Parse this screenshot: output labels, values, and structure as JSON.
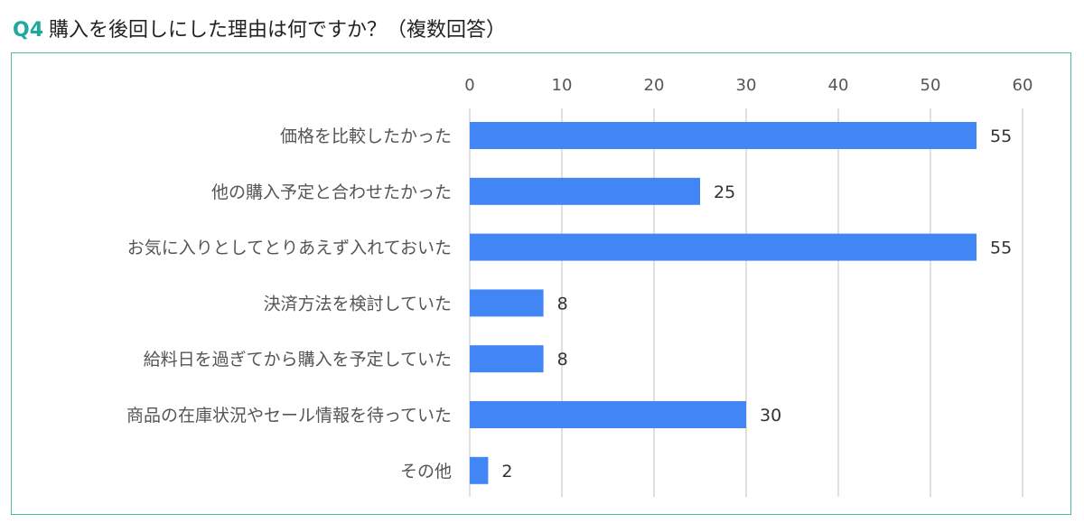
{
  "header": {
    "qnum": "Q4",
    "question": "購入を後回しにした理由は何ですか？（複数回答）"
  },
  "chart_data": {
    "type": "bar",
    "orientation": "horizontal",
    "categories": [
      "価格を比較したかった",
      "他の購入予定と合わせたかった",
      "お気に入りとしてとりあえず入れておいた",
      "決済方法を検討していた",
      "給料日を過ぎてから購入を予定していた",
      "商品の在庫状況やセール情報を待っていた",
      "その他"
    ],
    "values": [
      55,
      25,
      55,
      8,
      8,
      30,
      2
    ],
    "xticks": [
      0,
      10,
      20,
      30,
      40,
      50,
      60
    ],
    "xlim": [
      0,
      60
    ],
    "grid": true,
    "title": "",
    "xlabel": "",
    "ylabel": "",
    "colors": {
      "bar": "#4285f4",
      "grid": "#cccccc",
      "frame": "#4fb8aa",
      "qnum": "#1fa89c"
    }
  }
}
